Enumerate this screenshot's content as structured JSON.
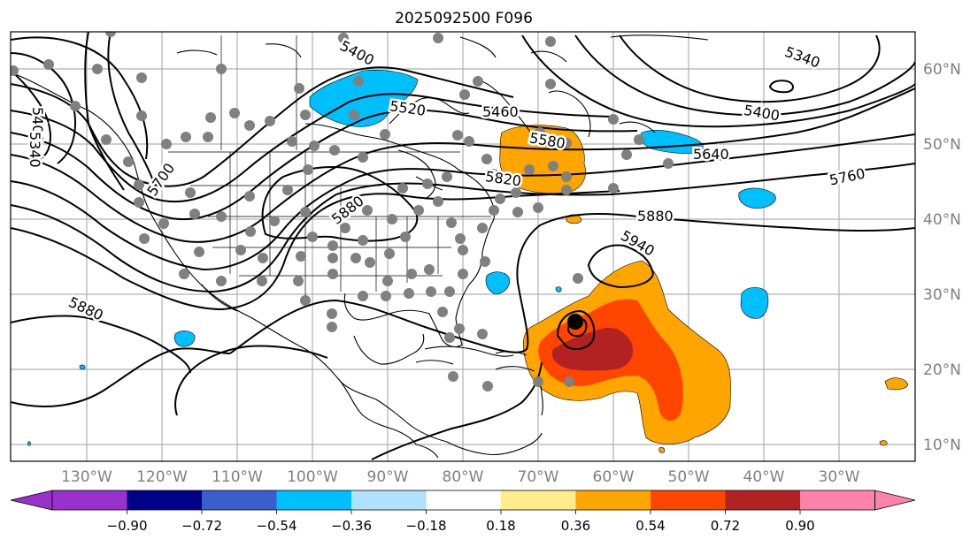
{
  "title": "2025092500 F096",
  "lon_labels": [
    "130°W",
    "120°W",
    "110°W",
    "100°W",
    "90°W",
    "80°W",
    "70°W",
    "60°W",
    "50°W",
    "40°W",
    "30°W"
  ],
  "lat_labels": [
    "60°N",
    "50°N",
    "40°N",
    "30°N",
    "20°N",
    "10°N"
  ],
  "contour_labels": [
    "5400",
    "5340",
    "5400",
    "5520",
    "5460",
    "5580",
    "5640",
    "5340",
    "5400",
    "5760",
    "5700",
    "5880",
    "5820",
    "5880",
    "5940",
    "5880"
  ],
  "colorbar": {
    "ticks": [
      "−0.90",
      "−0.72",
      "−0.54",
      "−0.36",
      "−0.18",
      "0.18",
      "0.36",
      "0.54",
      "0.72",
      "0.90"
    ],
    "colors": [
      "#9932cc",
      "#00008b",
      "#3a5fcd",
      "#00bfff",
      "#b0e2ff",
      "#ffffff",
      "#ffec8b",
      "#ffa500",
      "#ff4500",
      "#b22222",
      "#ff82ab"
    ]
  }
}
